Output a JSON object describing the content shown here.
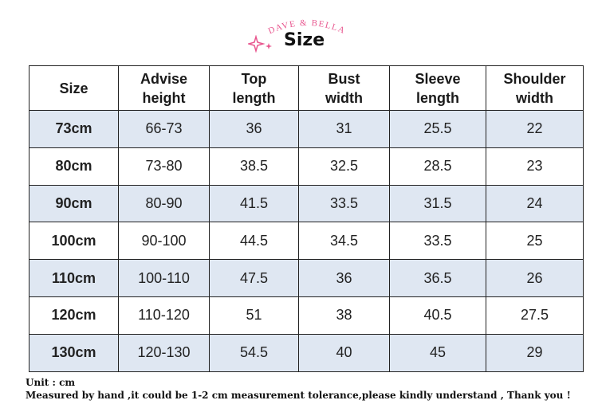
{
  "header": {
    "brand": "DAVE & BELLA",
    "title": "Size"
  },
  "table": {
    "columns": [
      "Size",
      "Advise height",
      "Top length",
      "Bust width",
      "Sleeve length",
      "Shoulder width"
    ],
    "column_lines": [
      [
        "Size"
      ],
      [
        "Advise",
        "height"
      ],
      [
        "Top",
        "length"
      ],
      [
        "Bust",
        "width"
      ],
      [
        "Sleeve",
        "length"
      ],
      [
        "Shoulder",
        "width"
      ]
    ],
    "rows": [
      [
        "73cm",
        "66-73",
        "36",
        "31",
        "25.5",
        "22"
      ],
      [
        "80cm",
        "73-80",
        "38.5",
        "32.5",
        "28.5",
        "23"
      ],
      [
        "90cm",
        "80-90",
        "41.5",
        "33.5",
        "31.5",
        "24"
      ],
      [
        "100cm",
        "90-100",
        "44.5",
        "34.5",
        "33.5",
        "25"
      ],
      [
        "110cm",
        "100-110",
        "47.5",
        "36",
        "36.5",
        "26"
      ],
      [
        "120cm",
        "110-120",
        "51",
        "38",
        "40.5",
        "27.5"
      ],
      [
        "130cm",
        "120-130",
        "54.5",
        "40",
        "45",
        "29"
      ]
    ],
    "shade_color": "#dfe7f2"
  },
  "footer": {
    "unit": "Unit : cm",
    "note": "Measured by hand ,it could be 1-2 cm measurement tolerance,please kindly understand , Thank you !"
  },
  "colors": {
    "brand": "#e8578f",
    "text": "#111111"
  }
}
